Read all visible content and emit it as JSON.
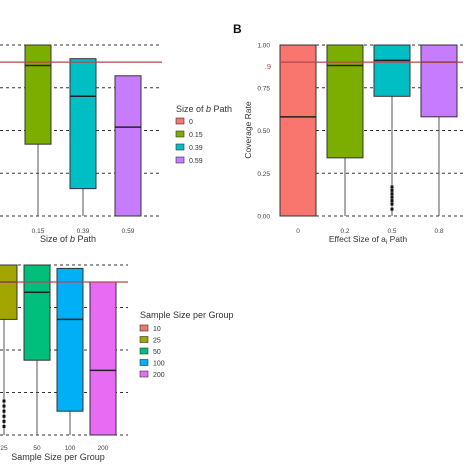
{
  "figure": {
    "panel_b_letter": "B"
  },
  "chart_data": [
    {
      "panel": "A (cropped)",
      "type": "box",
      "xlabel": "Size of b Path",
      "ylabel": "",
      "ylim": [
        0.0,
        1.0
      ],
      "reference_line": 0.9,
      "reference_line_color": "#b5474f",
      "grid": "dashed horizontal at y ticks",
      "categories": [
        "0.15",
        "0.39",
        "0.59"
      ],
      "boxes": [
        {
          "category": "0.15",
          "color": "#7cae00",
          "min": 0.0,
          "q1": 0.42,
          "median": 0.88,
          "q3": 1.0,
          "max": 1.0
        },
        {
          "category": "0.39",
          "color": "#00bfc4",
          "min": 0.0,
          "q1": 0.16,
          "median": 0.7,
          "q3": 0.92,
          "max": 0.92
        },
        {
          "category": "0.59",
          "color": "#c77cff",
          "min": 0.0,
          "q1": 0.0,
          "median": 0.52,
          "q3": 0.82,
          "max": 0.82
        }
      ],
      "legend": {
        "title": "Size of b Path",
        "placement": "right",
        "entries": [
          {
            "label": "0",
            "color": "#f8766d"
          },
          {
            "label": "0.15",
            "color": "#7cae00"
          },
          {
            "label": "0.39",
            "color": "#00bfc4"
          },
          {
            "label": "0.59",
            "color": "#c77cff"
          }
        ]
      }
    },
    {
      "panel": "B",
      "type": "box",
      "xlabel": "Effect Size of a Path",
      "ylabel": "Coverage Rate",
      "ylim": [
        0.0,
        1.0
      ],
      "yticks": [
        "0.00",
        "0.25",
        "0.50",
        "0.75",
        "1.00"
      ],
      "reference_line": 0.9,
      "reference_line_label": ".9",
      "reference_line_color": "#b5474f",
      "grid": "dashed horizontal at y ticks",
      "categories": [
        "0",
        "0.2",
        "0.5",
        "0.8"
      ],
      "boxes": [
        {
          "category": "0",
          "color": "#f8766d",
          "min": 0.0,
          "q1": 0.0,
          "median": 0.58,
          "q3": 1.0,
          "max": 1.0,
          "outliers": []
        },
        {
          "category": "0.2",
          "color": "#7cae00",
          "min": 0.0,
          "q1": 0.34,
          "median": 0.88,
          "q3": 1.0,
          "max": 1.0,
          "outliers": []
        },
        {
          "category": "0.5",
          "color": "#00bfc4",
          "min": 0.0,
          "q1": 0.7,
          "median": 0.91,
          "q3": 1.0,
          "max": 1.0,
          "outliers": [
            0.17,
            0.15,
            0.13,
            0.11,
            0.09,
            0.07,
            0.04
          ]
        },
        {
          "category": "0.8",
          "color": "#c77cff",
          "min": 0.0,
          "q1": 0.58,
          "median": 0.9,
          "q3": 1.0,
          "max": 1.0,
          "outliers": []
        }
      ]
    },
    {
      "panel": "C (cropped)",
      "type": "box",
      "xlabel": "Sample Size per Group",
      "ylabel": "",
      "ylim": [
        0.0,
        1.0
      ],
      "reference_line": 0.9,
      "reference_line_color": "#b5474f",
      "grid": "dashed horizontal at y ticks",
      "categories": [
        "25",
        "50",
        "100",
        "200"
      ],
      "boxes": [
        {
          "category": "25",
          "color": "#a3a500",
          "min": 0.0,
          "q1": 0.68,
          "median": 0.9,
          "q3": 1.0,
          "max": 1.0,
          "outliers": [
            0.2,
            0.17,
            0.14,
            0.11,
            0.08,
            0.05
          ]
        },
        {
          "category": "50",
          "color": "#00bf7d",
          "min": 0.0,
          "q1": 0.44,
          "median": 0.84,
          "q3": 1.0,
          "max": 1.0,
          "outliers": []
        },
        {
          "category": "100",
          "color": "#00b0f6",
          "min": 0.0,
          "q1": 0.14,
          "median": 0.68,
          "q3": 0.98,
          "max": 0.98,
          "outliers": []
        },
        {
          "category": "200",
          "color": "#e76bf3",
          "min": 0.0,
          "q1": 0.0,
          "median": 0.38,
          "q3": 0.9,
          "max": 0.9,
          "outliers": []
        }
      ],
      "legend": {
        "title": "Sample Size per Group",
        "placement": "right",
        "entries": [
          {
            "label": "10",
            "color": "#f8766d"
          },
          {
            "label": "25",
            "color": "#a3a500"
          },
          {
            "label": "50",
            "color": "#00bf7d"
          },
          {
            "label": "100",
            "color": "#00b0f6"
          },
          {
            "label": "200",
            "color": "#e76bf3"
          }
        ]
      }
    }
  ]
}
